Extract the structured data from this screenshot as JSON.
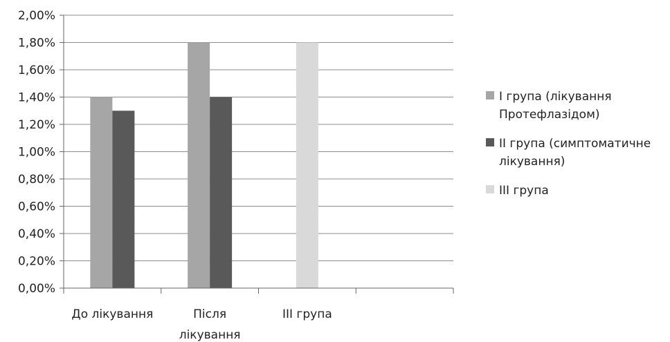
{
  "chart_data": {
    "type": "bar",
    "categories": [
      [
        "До лікування"
      ],
      [
        "Після",
        "лікування"
      ],
      [
        "III група"
      ],
      [
        ""
      ]
    ],
    "series": [
      {
        "name": [
          "I група (лікування",
          "Протефлазідом)"
        ],
        "values": [
          1.4,
          1.8,
          null,
          null
        ],
        "color": "#a6a6a6"
      },
      {
        "name": [
          "II група (симптоматичне",
          "лікування)"
        ],
        "values": [
          1.3,
          1.4,
          null,
          null
        ],
        "color": "#595959"
      },
      {
        "name": [
          "III група"
        ],
        "values": [
          null,
          null,
          1.8,
          null
        ],
        "color": "#d9d9d9"
      }
    ],
    "ylim": [
      0,
      2.0
    ],
    "y_ticks": [
      0,
      0.2,
      0.4,
      0.6,
      0.8,
      1.0,
      1.2,
      1.4,
      1.6,
      1.8,
      2.0
    ],
    "y_tick_labels": [
      "0,00%",
      "0,20%",
      "0,40%",
      "0,60%",
      "0,80%",
      "1,00%",
      "1,20%",
      "1,40%",
      "1,60%",
      "1,80%",
      "2,00%"
    ],
    "grid": true,
    "legend_position": "right",
    "title": "",
    "xlabel": "",
    "ylabel": ""
  }
}
